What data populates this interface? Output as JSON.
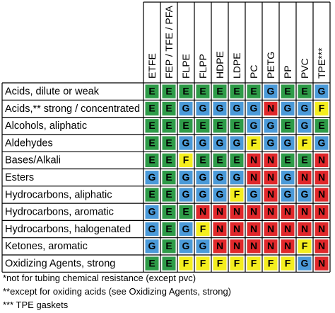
{
  "chart_data": {
    "type": "table",
    "columns": [
      "ETFE",
      "FEP / TFE / PFA",
      "FLPE",
      "FLPP",
      "HDPE",
      "LDPE",
      "PC",
      "PETG",
      "PP",
      "PVC",
      "TPE***"
    ],
    "rows": [
      {
        "label": "Acids, dilute or weak",
        "values": [
          "E",
          "E",
          "E",
          "E",
          "E",
          "E",
          "E",
          "G",
          "E",
          "E",
          "G"
        ]
      },
      {
        "label": "Acids,** strong / concentrated",
        "values": [
          "E",
          "E",
          "G",
          "G",
          "G",
          "G",
          "G",
          "N",
          "G",
          "G",
          "F"
        ]
      },
      {
        "label": "Alcohols, aliphatic",
        "values": [
          "E",
          "E",
          "E",
          "E",
          "E",
          "E",
          "G",
          "G",
          "E",
          "G",
          "E"
        ]
      },
      {
        "label": "Aldehydes",
        "values": [
          "E",
          "E",
          "G",
          "G",
          "G",
          "G",
          "F",
          "G",
          "G",
          "F",
          "G"
        ]
      },
      {
        "label": "Bases/Alkali",
        "values": [
          "E",
          "E",
          "F",
          "E",
          "E",
          "E",
          "N",
          "N",
          "E",
          "E",
          "N"
        ]
      },
      {
        "label": "Esters",
        "values": [
          "G",
          "E",
          "G",
          "G",
          "G",
          "G",
          "N",
          "N",
          "G",
          "N",
          "N"
        ]
      },
      {
        "label": "Hydrocarbons, aliphatic",
        "values": [
          "E",
          "E",
          "G",
          "G",
          "G",
          "F",
          "G",
          "N",
          "G",
          "G",
          "N"
        ]
      },
      {
        "label": "Hydrocarbons, aromatic",
        "values": [
          "G",
          "E",
          "E",
          "N",
          "N",
          "N",
          "N",
          "N",
          "N",
          "N",
          "N"
        ]
      },
      {
        "label": "Hydrocarbons, halogenated",
        "values": [
          "G",
          "E",
          "G",
          "F",
          "N",
          "N",
          "N",
          "N",
          "N",
          "N",
          "N"
        ]
      },
      {
        "label": "Ketones, aromatic",
        "values": [
          "G",
          "E",
          "G",
          "G",
          "N",
          "N",
          "N",
          "N",
          "N",
          "F",
          "N"
        ]
      },
      {
        "label": "Oxidizing Agents, strong",
        "values": [
          "E",
          "E",
          "F",
          "F",
          "F",
          "F",
          "F",
          "F",
          "F",
          "G",
          "N"
        ]
      }
    ],
    "color_map": {
      "E": "#2e9b48",
      "G": "#4b9ad8",
      "F": "#f4ee1e",
      "N": "#e0282b"
    },
    "footnotes": [
      "*not for tubing chemical resistance (except pvc)",
      "**except for oxiding acids (see Oxidizing Agents, strong)",
      "*** TPE gaskets"
    ]
  }
}
